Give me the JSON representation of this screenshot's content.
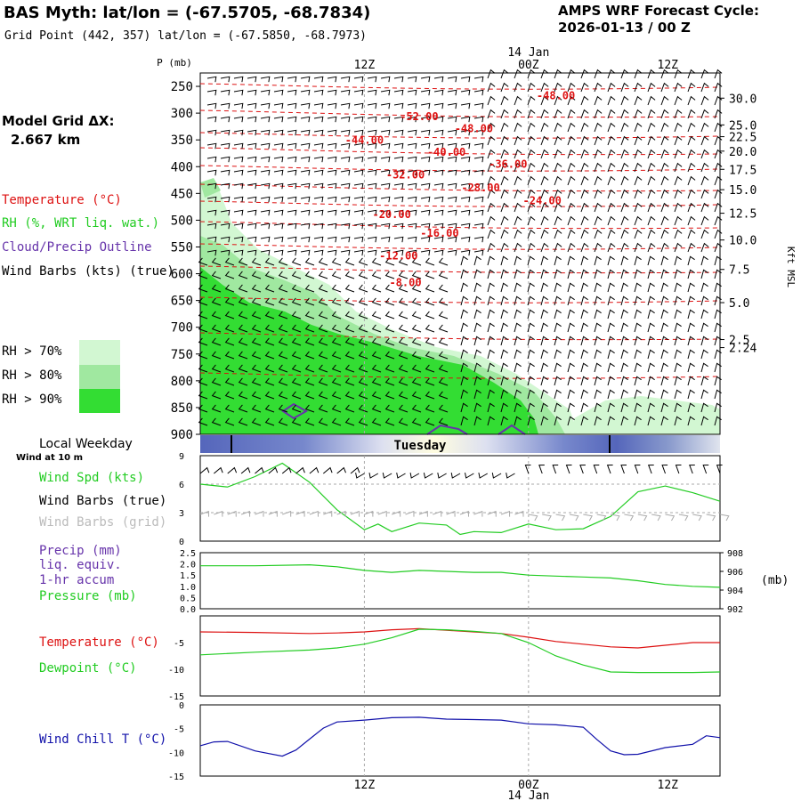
{
  "header": {
    "title": "BAS Myth:  lat/lon = (-67.5705, -68.7834)",
    "grid_point": "Grid Point (442, 357) lat/lon = (-67.5850, -68.7973)",
    "cycle_label": "AMPS WRF Forecast Cycle:",
    "cycle_value": "2026-01-13 / 00  Z"
  },
  "model_grid": {
    "label": "Model Grid ΔX:",
    "value": "2.667 km"
  },
  "legend": {
    "temperature": "Temperature (°C)",
    "rh": "RH (%, WRT liq. wat.)",
    "cloud": "Cloud/Precip Outline",
    "wind": "Wind Barbs (kts) (true)",
    "rh70": "RH > 70%",
    "rh80": "RH > 80%",
    "rh90": "RH > 90%",
    "local_weekday": "Local Weekday",
    "wind_10m": "Wind at 10 m",
    "wind_spd": "Wind Spd (kts)",
    "wind_barbs_true": "Wind Barbs (true)",
    "wind_barbs_grid": "Wind Barbs (grid)",
    "precip": "Precip (mm)",
    "liq": "liq. equiv.",
    "accum": "1-hr accum",
    "pressure": "Pressure (mb)",
    "panel_temp": "Temperature (°C)",
    "dewpoint": "Dewpoint (°C)",
    "windchill": "Wind Chill T (°C)"
  },
  "colors": {
    "temp": "#dd1111",
    "rh": "#22cc22",
    "cloud": "#6633aa",
    "rh70": "#d2f7d2",
    "rh80": "#a0e8a0",
    "rh90": "#33dd33",
    "windchill": "#1111aa",
    "gray": "#aaaaaa"
  },
  "time_axis": {
    "top_labels": [
      "12Z",
      "00Z",
      "12Z"
    ],
    "day_label": "14 Jan",
    "weekday": "Tuesday"
  },
  "chart_data": [
    {
      "type": "contour",
      "id": "cross_section",
      "ylabel": "P (mb)",
      "pressure_levels": [
        250,
        300,
        350,
        400,
        450,
        500,
        550,
        600,
        650,
        700,
        750,
        800,
        850,
        900
      ],
      "right_axis_label": "Kft MSL",
      "right_ticks": [
        {
          "p": 272,
          "label": "30.0"
        },
        {
          "p": 322,
          "label": "25.0"
        },
        {
          "p": 344,
          "label": "22.5"
        },
        {
          "p": 371,
          "label": "20.0"
        },
        {
          "p": 405,
          "label": "17.5"
        },
        {
          "p": 443,
          "label": "15.0"
        },
        {
          "p": 487,
          "label": "12.5"
        },
        {
          "p": 537,
          "label": "10.0"
        },
        {
          "p": 592,
          "label": "7.5"
        },
        {
          "p": 654,
          "label": "5.0"
        },
        {
          "p": 723,
          "label": "2.5"
        },
        {
          "p": 738,
          "label": "2.24"
        }
      ],
      "temperature_labels": [
        {
          "value": "-48.00",
          "hour": 26,
          "p": 266
        },
        {
          "value": "-52.00",
          "hour": 16,
          "p": 305
        },
        {
          "value": "-48.00",
          "hour": 20,
          "p": 327
        },
        {
          "value": "-44.00",
          "hour": 12,
          "p": 349
        },
        {
          "value": "-40.00",
          "hour": 18,
          "p": 371
        },
        {
          "value": "-36.00",
          "hour": 22.5,
          "p": 394
        },
        {
          "value": "-32.00",
          "hour": 15,
          "p": 414
        },
        {
          "value": "-28.00",
          "hour": 20.5,
          "p": 438
        },
        {
          "value": "-24.00",
          "hour": 25,
          "p": 462
        },
        {
          "value": "-20.00",
          "hour": 14,
          "p": 488
        },
        {
          "value": "-16.00",
          "hour": 17.5,
          "p": 523
        },
        {
          "value": "-12.00",
          "hour": 14.5,
          "p": 565
        },
        {
          "value": "-8.00",
          "hour": 15,
          "p": 615
        }
      ]
    },
    {
      "type": "line",
      "id": "wind_speed",
      "ylim": [
        0,
        9
      ],
      "yticks": [
        "9",
        "6",
        "3",
        "0"
      ],
      "series": [
        {
          "name": "Wind Spd (kts)",
          "hours": [
            0,
            2,
            4,
            6,
            8,
            10,
            12,
            13,
            14,
            16,
            18,
            19,
            20,
            22,
            24,
            26,
            28,
            30,
            32,
            34,
            36,
            38
          ],
          "values": [
            6.0,
            5.7,
            6.8,
            8.2,
            6.2,
            3.3,
            1.2,
            1.8,
            1.0,
            1.9,
            1.7,
            0.7,
            1.0,
            0.9,
            1.8,
            1.2,
            1.3,
            2.6,
            5.2,
            5.8,
            5.1,
            4.2
          ]
        }
      ]
    },
    {
      "type": "line",
      "id": "precip_pressure",
      "ylim": [
        0.0,
        2.5
      ],
      "yticks": [
        "2.5",
        "2.0",
        "1.5",
        "1.0",
        "0.5",
        "0.0"
      ],
      "right_ticks": [
        "908",
        "906",
        "904",
        "902"
      ],
      "right_unit": "(mb)",
      "series": [
        {
          "name": "Pressure (mb)",
          "hours": [
            0,
            4,
            8,
            10,
            12,
            14,
            16,
            18,
            20,
            22,
            24,
            26,
            28,
            30,
            32,
            34,
            36,
            38
          ],
          "values": [
            906.6,
            906.6,
            906.7,
            906.5,
            906.1,
            905.9,
            906.1,
            906.0,
            905.9,
            905.9,
            905.6,
            905.5,
            905.4,
            905.3,
            905.0,
            904.6,
            904.4,
            904.3
          ]
        }
      ]
    },
    {
      "type": "line",
      "id": "temperature_dewpoint",
      "ylim": [
        -15,
        0
      ],
      "yticks": [
        "-5",
        "-10",
        "-15"
      ],
      "series": [
        {
          "name": "Temperature (°C)",
          "hours": [
            0,
            4,
            8,
            10,
            12,
            14,
            16,
            18,
            20,
            22,
            24,
            26,
            28,
            30,
            32,
            34,
            36,
            38
          ],
          "values": [
            -3.0,
            -3.1,
            -3.3,
            -3.2,
            -3.0,
            -2.6,
            -2.4,
            -2.7,
            -3.0,
            -3.3,
            -4.0,
            -4.8,
            -5.3,
            -5.8,
            -6.0,
            -5.5,
            -5.0,
            -5.0
          ]
        },
        {
          "name": "Dewpoint (°C)",
          "hours": [
            0,
            4,
            8,
            10,
            12,
            14,
            16,
            18,
            20,
            22,
            24,
            26,
            28,
            30,
            32,
            34,
            36,
            38
          ],
          "values": [
            -7.3,
            -6.8,
            -6.4,
            -6.0,
            -5.3,
            -4.1,
            -2.5,
            -2.6,
            -2.9,
            -3.3,
            -5.0,
            -7.5,
            -9.2,
            -10.5,
            -10.6,
            -10.6,
            -10.6,
            -10.5
          ]
        }
      ]
    },
    {
      "type": "line",
      "id": "wind_chill",
      "ylim": [
        -15,
        0
      ],
      "yticks": [
        "0",
        "-5",
        "-10",
        "-15"
      ],
      "series": [
        {
          "name": "Wind Chill T (°C)",
          "hours": [
            0,
            1,
            2,
            4,
            6,
            7,
            8,
            9,
            10,
            12,
            14,
            16,
            18,
            20,
            22,
            24,
            26,
            28,
            29,
            30,
            31,
            32,
            34,
            36,
            37,
            38
          ],
          "values": [
            -8.6,
            -7.8,
            -7.7,
            -9.7,
            -10.8,
            -9.5,
            -7.2,
            -4.9,
            -3.6,
            -3.2,
            -2.7,
            -2.6,
            -3.0,
            -3.1,
            -3.2,
            -4.0,
            -4.2,
            -4.7,
            -7.3,
            -9.7,
            -10.5,
            -10.4,
            -9.0,
            -8.3,
            -6.5,
            -6.9
          ]
        }
      ]
    }
  ]
}
